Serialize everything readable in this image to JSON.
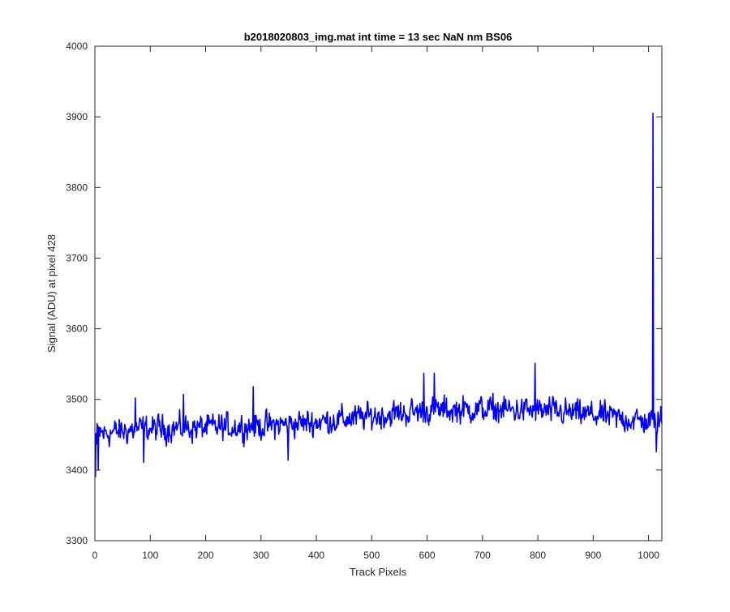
{
  "chart_data": {
    "type": "line",
    "title": "b2018020803_img.mat int time = 13 sec  NaN nm BS06",
    "xlabel": "Track Pixels",
    "ylabel": "Signal (ADU) at pixel 428",
    "xlim": [
      0,
      1024
    ],
    "ylim": [
      3300,
      4000
    ],
    "xticks": [
      0,
      100,
      200,
      300,
      400,
      500,
      600,
      700,
      800,
      900,
      1000
    ],
    "yticks": [
      3300,
      3400,
      3500,
      3600,
      3700,
      3800,
      3900,
      4000
    ],
    "grid": false,
    "line_color": "#0000ff",
    "series": [
      {
        "trend": [
          [
            0,
            3450
          ],
          [
            80,
            3458
          ],
          [
            200,
            3460
          ],
          [
            300,
            3462
          ],
          [
            400,
            3468
          ],
          [
            500,
            3476
          ],
          [
            600,
            3484
          ],
          [
            700,
            3486
          ],
          [
            800,
            3484
          ],
          [
            900,
            3478
          ],
          [
            1000,
            3468
          ],
          [
            1024,
            3470
          ]
        ],
        "noise_amplitude": 17,
        "points_count": 1024,
        "features": [
          {
            "x": 1,
            "y": 3390
          },
          {
            "x": 3,
            "y": 3437
          },
          {
            "x": 6,
            "y": 3400
          },
          {
            "x": 10,
            "y": 3460
          },
          {
            "x": 73,
            "y": 3502
          },
          {
            "x": 88,
            "y": 3411
          },
          {
            "x": 160,
            "y": 3507
          },
          {
            "x": 286,
            "y": 3518
          },
          {
            "x": 349,
            "y": 3414
          },
          {
            "x": 594,
            "y": 3537
          },
          {
            "x": 613,
            "y": 3537
          },
          {
            "x": 795,
            "y": 3551
          },
          {
            "x": 1008,
            "y": 3905
          },
          {
            "x": 1010,
            "y": 3460
          },
          {
            "x": 1014,
            "y": 3426
          },
          {
            "x": 1022,
            "y": 3490
          }
        ]
      }
    ]
  }
}
